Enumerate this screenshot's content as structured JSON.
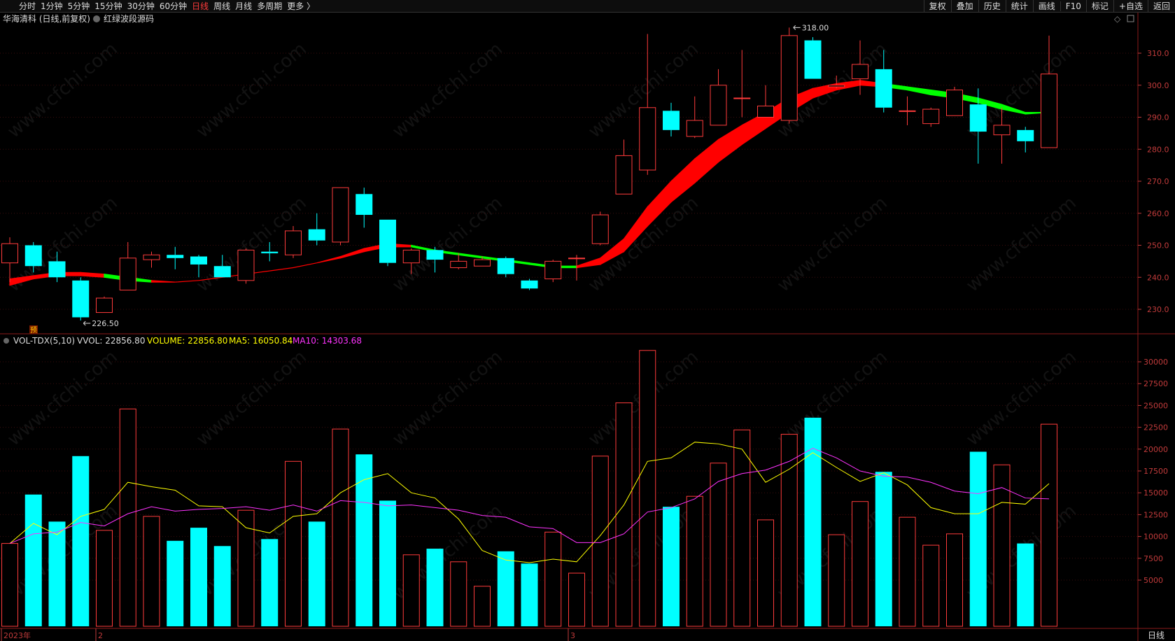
{
  "toolbar": {
    "periods": [
      "分时",
      "1分钟",
      "5分钟",
      "15分钟",
      "30分钟",
      "60分钟",
      "日线",
      "周线",
      "月线",
      "多周期",
      "更多 〉"
    ],
    "active_period": "日线",
    "right_buttons": [
      "复权",
      "叠加",
      "历史",
      "统计",
      "画线",
      "F10",
      "标记",
      "+自选",
      "返回"
    ]
  },
  "header": {
    "title": "华海清科 (日线,前复权)",
    "indicator": "红绿波段源码"
  },
  "vol_header": {
    "name": "VOL-TDX(5,10)",
    "vvol": "VVOL: 22856.80",
    "volume": "VOLUME: 22856.80",
    "ma5": "MA5: 16050.84",
    "ma10": "MA10: 14303.68"
  },
  "annotations": {
    "high": "318.00",
    "low": "226.50",
    "marker": "预"
  },
  "period_label": "日线",
  "watermark": "www.cfchi.com",
  "colors": {
    "up": "#ff3b3b",
    "down": "#00ffff",
    "band_up": "#ff0000",
    "band_down": "#00ff00",
    "ma5": "#ffff00",
    "ma10": "#ff33ff",
    "axis": "#c23b3b"
  },
  "chart_data": [
    {
      "type": "candlestick",
      "title": "华海清科 (日线,前复权)",
      "y_ticks": [
        "310.0",
        "300.0",
        "290.0",
        "280.0",
        "270.0",
        "260.0",
        "250.0",
        "240.0",
        "230.0"
      ],
      "ylim": [
        221,
        322
      ],
      "x_labels": [
        {
          "label": "2023年",
          "index": 0
        },
        {
          "label": "2",
          "index": 4
        },
        {
          "label": "3",
          "index": 24
        }
      ],
      "candles": [
        {
          "o": 244.5,
          "c": 250.5,
          "h": 252.5,
          "l": 238.5
        },
        {
          "o": 250,
          "c": 243.5,
          "h": 251,
          "l": 241.5
        },
        {
          "o": 245,
          "c": 240,
          "h": 248,
          "l": 238.5
        },
        {
          "o": 239,
          "c": 227.5,
          "h": 240,
          "l": 226.5
        },
        {
          "o": 229,
          "c": 233.5,
          "h": 234,
          "l": 229
        },
        {
          "o": 236,
          "c": 246,
          "h": 251,
          "l": 236
        },
        {
          "o": 245.5,
          "c": 247,
          "h": 248,
          "l": 243
        },
        {
          "o": 247,
          "c": 246,
          "h": 249.5,
          "l": 242.5
        },
        {
          "o": 246.5,
          "c": 244,
          "h": 247,
          "l": 240
        },
        {
          "o": 243.5,
          "c": 240,
          "h": 247,
          "l": 240
        },
        {
          "o": 239,
          "c": 248.5,
          "h": 249,
          "l": 238
        },
        {
          "o": 248,
          "c": 247.5,
          "h": 251,
          "l": 245
        },
        {
          "o": 247,
          "c": 254.5,
          "h": 256,
          "l": 246
        },
        {
          "o": 255,
          "c": 251.5,
          "h": 260,
          "l": 250
        },
        {
          "o": 251,
          "c": 268,
          "h": 268,
          "l": 250
        },
        {
          "o": 266,
          "c": 259.5,
          "h": 268,
          "l": 255.5
        },
        {
          "o": 258,
          "c": 244.5,
          "h": 258,
          "l": 243.5
        },
        {
          "o": 244.5,
          "c": 248.5,
          "h": 249,
          "l": 241
        },
        {
          "o": 248.5,
          "c": 245.5,
          "h": 249.5,
          "l": 241.5
        },
        {
          "o": 243,
          "c": 245,
          "h": 247.5,
          "l": 242.5
        },
        {
          "o": 243.5,
          "c": 245.5,
          "h": 246.5,
          "l": 243.5
        },
        {
          "o": 246,
          "c": 241,
          "h": 246.5,
          "l": 240
        },
        {
          "o": 239,
          "c": 236.5,
          "h": 239.5,
          "l": 236
        },
        {
          "o": 239.5,
          "c": 245,
          "h": 245.5,
          "l": 238.5
        },
        {
          "o": 246,
          "c": 246,
          "h": 247,
          "l": 239
        },
        {
          "o": 250.5,
          "c": 259.5,
          "h": 260.5,
          "l": 250
        },
        {
          "o": 266,
          "c": 278,
          "h": 283,
          "l": 266
        },
        {
          "o": 273.5,
          "c": 293,
          "h": 316,
          "l": 272
        },
        {
          "o": 292,
          "c": 286,
          "h": 294.5,
          "l": 284
        },
        {
          "o": 284,
          "c": 289,
          "h": 296.5,
          "l": 283.5
        },
        {
          "o": 287.5,
          "c": 300,
          "h": 305,
          "l": 287.5
        },
        {
          "o": 296,
          "c": 296,
          "h": 311,
          "l": 290
        },
        {
          "o": 290,
          "c": 293.5,
          "h": 300,
          "l": 290
        },
        {
          "o": 289,
          "c": 315.5,
          "h": 318,
          "l": 288
        },
        {
          "o": 314,
          "c": 302,
          "h": 315,
          "l": 302
        },
        {
          "o": 299.5,
          "c": 300,
          "h": 303,
          "l": 299
        },
        {
          "o": 302,
          "c": 306.5,
          "h": 314,
          "l": 297
        },
        {
          "o": 305,
          "c": 293,
          "h": 311,
          "l": 291.5
        },
        {
          "o": 292,
          "c": 292,
          "h": 296.5,
          "l": 287.5
        },
        {
          "o": 288,
          "c": 292.5,
          "h": 293,
          "l": 287
        },
        {
          "o": 290.5,
          "c": 298.5,
          "h": 299.5,
          "l": 290.5
        },
        {
          "o": 294,
          "c": 285.5,
          "h": 299,
          "l": 275.5
        },
        {
          "o": 284.5,
          "c": 287.5,
          "h": 293,
          "l": 275.5
        },
        {
          "o": 286,
          "c": 282.5,
          "h": 287,
          "l": 279
        },
        {
          "o": 280.5,
          "c": 303.5,
          "h": 315.5,
          "l": 280.5
        }
      ],
      "band_upper": [
        239.5,
        240.5,
        241.5,
        241.5,
        241,
        240,
        239,
        238.5,
        239,
        240,
        241,
        242,
        243,
        244.5,
        246.5,
        249,
        250.5,
        250,
        248.5,
        247.5,
        246.5,
        245.5,
        244.5,
        243.5,
        243.5,
        246,
        252,
        262,
        270,
        277,
        283,
        287.5,
        291.5,
        296,
        299,
        300.5,
        301.5,
        300.5,
        299.5,
        298.5,
        297.5,
        296,
        294,
        291.5,
        291.5
      ],
      "band_lower": [
        237.5,
        239.5,
        240.5,
        240.5,
        240,
        239,
        238.5,
        238.5,
        239,
        240,
        241,
        242,
        243,
        244.5,
        246,
        248,
        249.5,
        249.5,
        248,
        247,
        246,
        245,
        244,
        243,
        243,
        244,
        248,
        256,
        263.5,
        269.5,
        276,
        281.5,
        286.5,
        291.5,
        296,
        298.5,
        300,
        299.5,
        298.5,
        297,
        296,
        294.5,
        292.5,
        291,
        291.5
      ],
      "band_color": [
        "up",
        "up",
        "up",
        "up",
        "down",
        "down",
        "up",
        "up",
        "up",
        "up",
        "up",
        "up",
        "up",
        "up",
        "up",
        "up",
        "up",
        "down",
        "down",
        "down",
        "down",
        "down",
        "down",
        "down",
        "up",
        "up",
        "up",
        "up",
        "up",
        "up",
        "up",
        "up",
        "up",
        "up",
        "up",
        "up",
        "up",
        "down",
        "down",
        "down",
        "down",
        "down",
        "down",
        "down",
        "down"
      ]
    },
    {
      "type": "bar",
      "title": "VOL-TDX(5,10)",
      "y_ticks": [
        "30000",
        "27500",
        "25000",
        "22500",
        "20000",
        "17500",
        "15000",
        "12500",
        "10000",
        "7500",
        "5000"
      ],
      "ylim": [
        0,
        32500
      ],
      "volume": [
        9200,
        14800,
        11700,
        19200,
        10700,
        24600,
        12300,
        9500,
        11000,
        8900,
        13000,
        9700,
        18600,
        11700,
        22300,
        19400,
        14100,
        7900,
        8600,
        7100,
        4300,
        8300,
        6900,
        10500,
        5800,
        19200,
        25300,
        31300,
        13400,
        14600,
        18400,
        22200,
        11900,
        21700,
        23600,
        10200,
        14000,
        17400,
        12200,
        9000,
        10300,
        19700,
        18200,
        9200,
        22856.8
      ],
      "ma5": [
        9200,
        11500,
        10200,
        12300,
        13100,
        16200,
        15700,
        15300,
        13500,
        13400,
        11000,
        10400,
        12300,
        12600,
        15000,
        16500,
        17200,
        15000,
        14400,
        12000,
        8400,
        7300,
        7000,
        7400,
        7100,
        10100,
        13600,
        18600,
        19000,
        20800,
        20600,
        20000,
        16200,
        17700,
        19600,
        17900,
        16300,
        17300,
        15900,
        13300,
        12600,
        12600,
        13900,
        13700,
        16050.84
      ],
      "ma10": [
        9200,
        10300,
        10500,
        11600,
        11200,
        12600,
        13400,
        12900,
        13100,
        13200,
        13400,
        13000,
        13600,
        12900,
        14100,
        13900,
        13500,
        13600,
        13300,
        13000,
        12400,
        12200,
        11100,
        10900,
        9300,
        9300,
        10300,
        12800,
        13300,
        14300,
        16300,
        17200,
        17600,
        18600,
        20100,
        19000,
        17500,
        16900,
        16800,
        16200,
        15200,
        14900,
        15600,
        14400,
        14303.68
      ]
    }
  ]
}
